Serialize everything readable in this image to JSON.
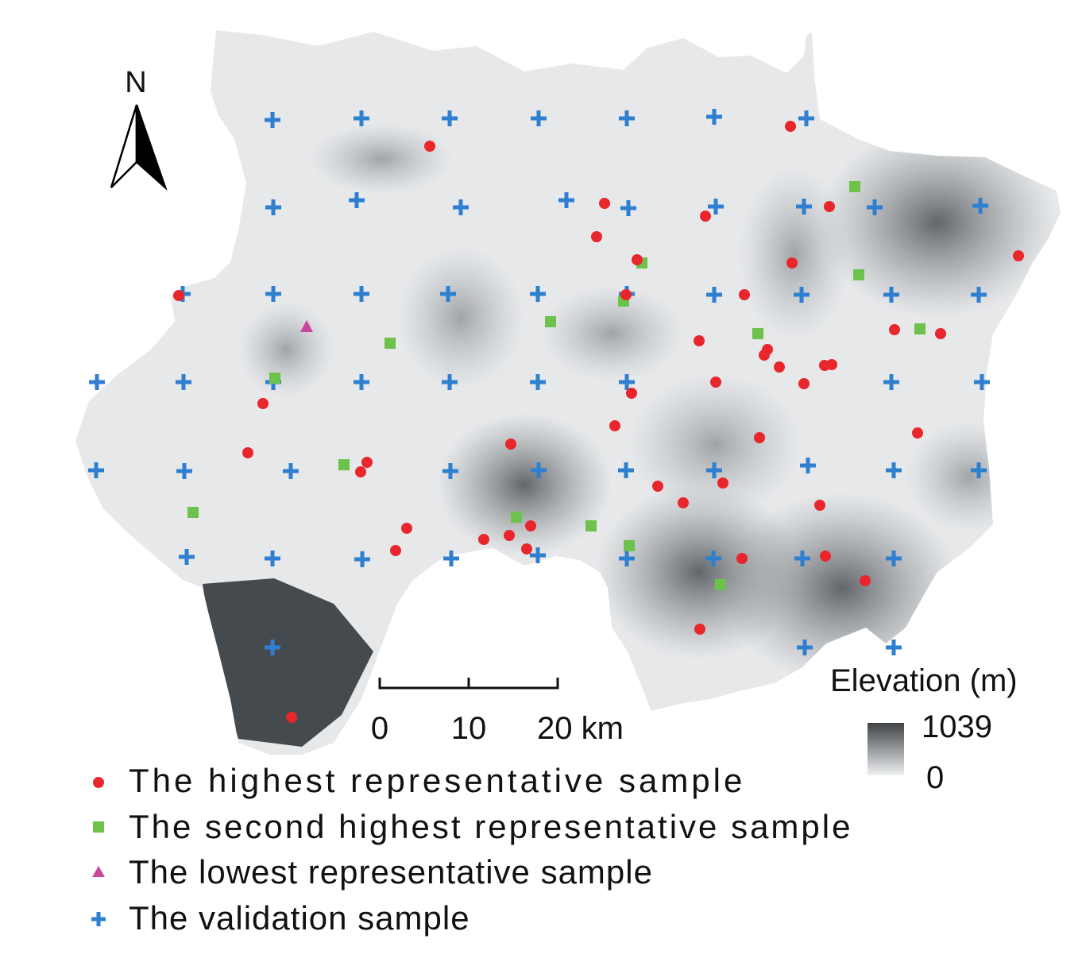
{
  "north_arrow": {
    "label": "N"
  },
  "scale_bar": {
    "ticks": [
      "0",
      "10",
      "20 km"
    ]
  },
  "elevation_legend": {
    "title": "Elevation (m)",
    "max_label": "1039",
    "min_label": "0",
    "color_high": "#3f4346",
    "color_low": "#eef0f2"
  },
  "legend": {
    "items": [
      {
        "label": "The highest representative sample",
        "symbol": "circle",
        "color": "#e8262b"
      },
      {
        "label": "The second highest representative sample",
        "symbol": "square",
        "color": "#6cc24a"
      },
      {
        "label": "The lowest representative sample",
        "symbol": "triangle",
        "color": "#c8479b"
      },
      {
        "label": "The validation sample",
        "symbol": "plus",
        "color": "#2f7fd0"
      }
    ]
  },
  "colors": {
    "highest": "#e8262b",
    "second": "#6cc24a",
    "lowest": "#c8479b",
    "validation": "#2f7fd0"
  }
}
